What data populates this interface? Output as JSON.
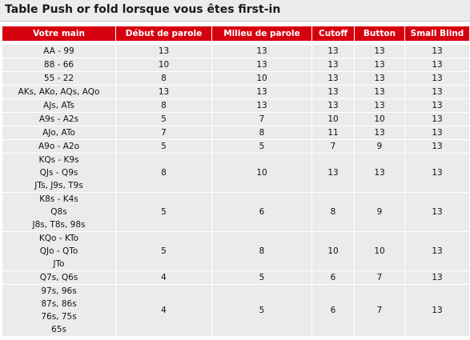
{
  "title": "Table Push or fold lorsque vous êtes first-in",
  "columns": [
    "Votre main",
    "Début de parole",
    "Milieu de parole",
    "Cutoff",
    "Button",
    "Small Blind"
  ],
  "rows": [
    {
      "hand": [
        "AA - 99"
      ],
      "values": [
        "13",
        "13",
        "13",
        "13",
        "13"
      ]
    },
    {
      "hand": [
        "88 - 66"
      ],
      "values": [
        "10",
        "13",
        "13",
        "13",
        "13"
      ]
    },
    {
      "hand": [
        "55 - 22"
      ],
      "values": [
        "8",
        "10",
        "13",
        "13",
        "13"
      ]
    },
    {
      "hand": [
        "AKs, AKo, AQs, AQo"
      ],
      "values": [
        "13",
        "13",
        "13",
        "13",
        "13"
      ]
    },
    {
      "hand": [
        "AJs, ATs"
      ],
      "values": [
        "8",
        "13",
        "13",
        "13",
        "13"
      ]
    },
    {
      "hand": [
        "A9s - A2s"
      ],
      "values": [
        "5",
        "7",
        "10",
        "10",
        "13"
      ]
    },
    {
      "hand": [
        "AJo, ATo"
      ],
      "values": [
        "7",
        "8",
        "11",
        "13",
        "13"
      ]
    },
    {
      "hand": [
        "A9o - A2o"
      ],
      "values": [
        "5",
        "5",
        "7",
        "9",
        "13"
      ]
    },
    {
      "hand": [
        "KQs - K9s",
        "QJs - Q9s",
        "JTs, J9s, T9s"
      ],
      "values": [
        "8",
        "10",
        "13",
        "13",
        "13"
      ]
    },
    {
      "hand": [
        "K8s - K4s",
        "Q8s",
        "J8s, T8s, 98s"
      ],
      "values": [
        "5",
        "6",
        "8",
        "9",
        "13"
      ]
    },
    {
      "hand": [
        "KQo - KTo",
        "QJo - QTo",
        "JTo"
      ],
      "values": [
        "5",
        "8",
        "10",
        "10",
        "13"
      ]
    },
    {
      "hand": [
        "Q7s, Q6s"
      ],
      "values": [
        "4",
        "5",
        "6",
        "7",
        "13"
      ]
    },
    {
      "hand": [
        "97s, 96s",
        "87s, 86s",
        "76s, 75s",
        "65s"
      ],
      "values": [
        "4",
        "5",
        "6",
        "7",
        "13"
      ]
    }
  ],
  "colors": {
    "header_bg": "#d7000f",
    "header_text": "#ffffff",
    "cell_bg": "#ebebeb",
    "title_bg": "#ececec"
  }
}
